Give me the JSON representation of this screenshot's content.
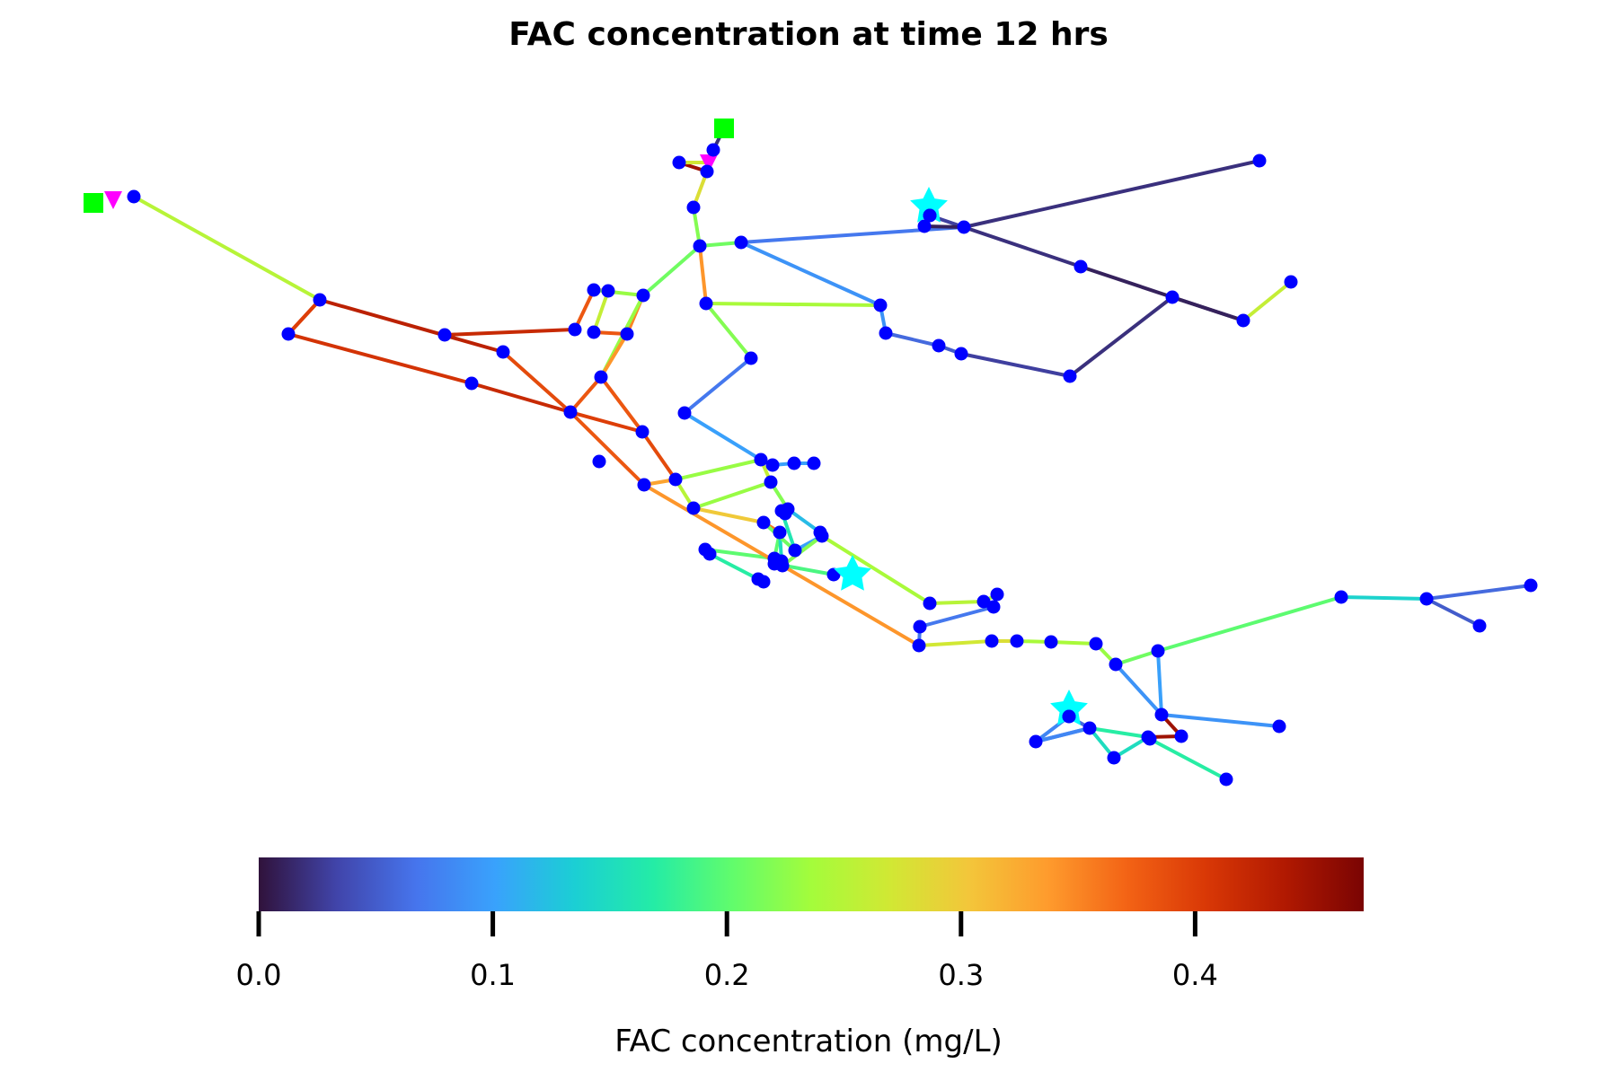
{
  "title": "FAC concentration at time 12 hrs",
  "colorbar": {
    "label": "FAC concentration (mg/L)",
    "min": 0.0,
    "max": 0.472,
    "ticks": [
      "0.0",
      "0.1",
      "0.2",
      "0.3",
      "0.4"
    ],
    "tick_values": [
      0.0,
      0.1,
      0.2,
      0.3,
      0.4
    ],
    "colormap": "turbo",
    "stops": [
      "#30123b",
      "#4145ab",
      "#4675ed",
      "#39a2fc",
      "#1bcfd4",
      "#24eca6",
      "#61fc6c",
      "#a4fc3b",
      "#d1e834",
      "#f3c63a",
      "#fe9b2d",
      "#f36315",
      "#d93806",
      "#b11901",
      "#7a0403"
    ]
  },
  "markers": {
    "node_color": "#0000ff",
    "reservoir_color": "#00ff00",
    "tank_color": "#ff00ff",
    "source_color": "#00ffff"
  }
}
